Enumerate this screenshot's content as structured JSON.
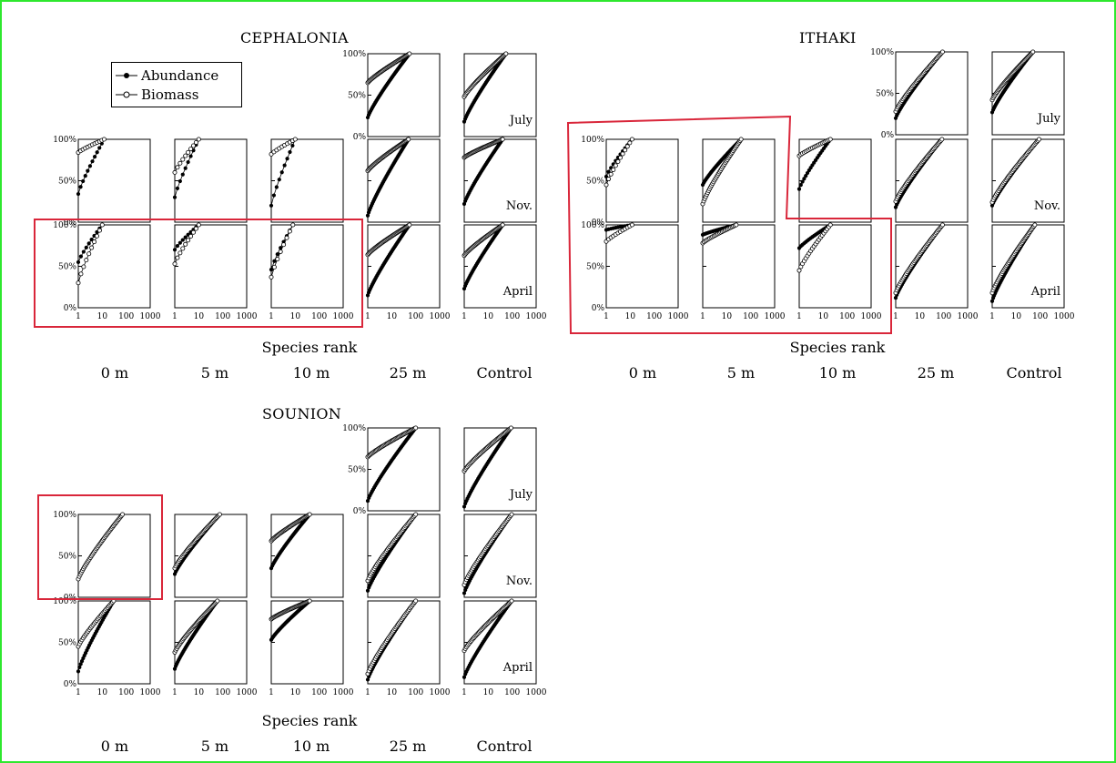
{
  "figure": {
    "sites": {
      "cephalonia": {
        "title": "CEPHALONIA",
        "xaxis_title": "Species rank",
        "columns": [
          "0 m",
          "5 m",
          "10 m",
          "25 m",
          "Control"
        ]
      },
      "ithaki": {
        "title": "ITHAKI",
        "xaxis_title": "Species rank",
        "columns": [
          "0 m",
          "5 m",
          "10 m",
          "25 m",
          "Control"
        ]
      },
      "sounion": {
        "title": "SOUNION",
        "xaxis_title": "Species rank",
        "columns": [
          "0 m",
          "5 m",
          "10 m",
          "25 m",
          "Control"
        ]
      }
    },
    "legend": {
      "abundance_label": "Abundance",
      "biomass_label": "Biomass"
    },
    "months": [
      "July",
      "Nov.",
      "April"
    ],
    "y_tick_labels": [
      "100%",
      "50%",
      "0%"
    ],
    "x_tick_labels": [
      "1",
      "10",
      "100",
      "1000"
    ],
    "colors": {
      "border": "#2ee82e",
      "highlight": "#d9263a",
      "abundance_marker": "#000000",
      "biomass_marker": "#ffffff"
    }
  },
  "chart_data": {
    "type": "scatter",
    "description_axes": {
      "xscale": "log",
      "xlim": [
        1,
        1000
      ],
      "ylim": [
        0,
        100
      ],
      "y_unit": "%"
    },
    "panels": [
      {
        "site": "cephalonia",
        "depth": "25 m",
        "month": "July",
        "abundance": {
          "start": 23,
          "n": 55
        },
        "biomass": {
          "start": 65,
          "n": 55
        }
      },
      {
        "site": "cephalonia",
        "depth": "Control",
        "month": "July",
        "abundance": {
          "start": 18,
          "n": 55
        },
        "biomass": {
          "start": 48,
          "n": 55
        }
      },
      {
        "site": "cephalonia",
        "depth": "0 m",
        "month": "Nov.",
        "abundance": {
          "start": 34,
          "n": 12
        },
        "biomass": {
          "start": 84,
          "n": 12
        }
      },
      {
        "site": "cephalonia",
        "depth": "5 m",
        "month": "Nov.",
        "abundance": {
          "start": 30,
          "n": 10
        },
        "biomass": {
          "start": 60,
          "n": 10
        }
      },
      {
        "site": "cephalonia",
        "depth": "10 m",
        "month": "Nov.",
        "abundance": {
          "start": 20,
          "n": 10
        },
        "biomass": {
          "start": 82,
          "n": 10
        }
      },
      {
        "site": "cephalonia",
        "depth": "25 m",
        "month": "Nov.",
        "abundance": {
          "start": 8,
          "n": 50
        },
        "biomass": {
          "start": 62,
          "n": 50
        }
      },
      {
        "site": "cephalonia",
        "depth": "Control",
        "month": "Nov.",
        "abundance": {
          "start": 22,
          "n": 40
        },
        "biomass": {
          "start": 78,
          "n": 40
        }
      },
      {
        "site": "cephalonia",
        "depth": "0 m",
        "month": "April",
        "abundance": {
          "start": 55,
          "n": 10
        },
        "biomass": {
          "start": 30,
          "n": 10
        }
      },
      {
        "site": "cephalonia",
        "depth": "5 m",
        "month": "April",
        "abundance": {
          "start": 70,
          "n": 10
        },
        "biomass": {
          "start": 53,
          "n": 10
        }
      },
      {
        "site": "cephalonia",
        "depth": "10 m",
        "month": "April",
        "abundance": {
          "start": 46,
          "n": 8
        },
        "biomass": {
          "start": 37,
          "n": 8
        }
      },
      {
        "site": "cephalonia",
        "depth": "25 m",
        "month": "April",
        "abundance": {
          "start": 15,
          "n": 55
        },
        "biomass": {
          "start": 64,
          "n": 55
        }
      },
      {
        "site": "cephalonia",
        "depth": "Control",
        "month": "April",
        "abundance": {
          "start": 23,
          "n": 40
        },
        "biomass": {
          "start": 63,
          "n": 40
        }
      },
      {
        "site": "ithaki",
        "depth": "25 m",
        "month": "July",
        "abundance": {
          "start": 20,
          "n": 90
        },
        "biomass": {
          "start": 28,
          "n": 90
        }
      },
      {
        "site": "ithaki",
        "depth": "Control",
        "month": "July",
        "abundance": {
          "start": 27,
          "n": 50
        },
        "biomass": {
          "start": 42,
          "n": 50
        }
      },
      {
        "site": "ithaki",
        "depth": "0 m",
        "month": "Nov.",
        "abundance": {
          "start": 55,
          "n": 12
        },
        "biomass": {
          "start": 45,
          "n": 12
        }
      },
      {
        "site": "ithaki",
        "depth": "5 m",
        "month": "Nov.",
        "abundance": {
          "start": 45,
          "n": 40
        },
        "biomass": {
          "start": 22,
          "n": 40
        }
      },
      {
        "site": "ithaki",
        "depth": "10 m",
        "month": "Nov.",
        "abundance": {
          "start": 40,
          "n": 20
        },
        "biomass": {
          "start": 80,
          "n": 20
        }
      },
      {
        "site": "ithaki",
        "depth": "25 m",
        "month": "Nov.",
        "abundance": {
          "start": 18,
          "n": 85
        },
        "biomass": {
          "start": 25,
          "n": 85
        }
      },
      {
        "site": "ithaki",
        "depth": "Control",
        "month": "Nov.",
        "abundance": {
          "start": 20,
          "n": 90
        },
        "biomass": {
          "start": 24,
          "n": 90
        }
      },
      {
        "site": "ithaki",
        "depth": "0 m",
        "month": "April",
        "abundance": {
          "start": 94,
          "n": 12
        },
        "biomass": {
          "start": 80,
          "n": 12
        }
      },
      {
        "site": "ithaki",
        "depth": "5 m",
        "month": "April",
        "abundance": {
          "start": 88,
          "n": 25
        },
        "biomass": {
          "start": 78,
          "n": 25
        }
      },
      {
        "site": "ithaki",
        "depth": "10 m",
        "month": "April",
        "abundance": {
          "start": 72,
          "n": 20
        },
        "biomass": {
          "start": 45,
          "n": 20
        }
      },
      {
        "site": "ithaki",
        "depth": "25 m",
        "month": "April",
        "abundance": {
          "start": 12,
          "n": 90
        },
        "biomass": {
          "start": 18,
          "n": 90
        }
      },
      {
        "site": "ithaki",
        "depth": "Control",
        "month": "April",
        "abundance": {
          "start": 8,
          "n": 60
        },
        "biomass": {
          "start": 18,
          "n": 60
        }
      },
      {
        "site": "sounion",
        "depth": "25 m",
        "month": "July",
        "abundance": {
          "start": 12,
          "n": 100
        },
        "biomass": {
          "start": 65,
          "n": 100
        }
      },
      {
        "site": "sounion",
        "depth": "Control",
        "month": "July",
        "abundance": {
          "start": 5,
          "n": 90
        },
        "biomass": {
          "start": 48,
          "n": 90
        }
      },
      {
        "site": "sounion",
        "depth": "0 m",
        "month": "Nov.",
        "abundance": {
          "start": 22,
          "n": 70
        },
        "biomass": {
          "start": 22,
          "n": 70
        }
      },
      {
        "site": "sounion",
        "depth": "5 m",
        "month": "Nov.",
        "abundance": {
          "start": 28,
          "n": 75
        },
        "biomass": {
          "start": 35,
          "n": 75
        }
      },
      {
        "site": "sounion",
        "depth": "10 m",
        "month": "Nov.",
        "abundance": {
          "start": 35,
          "n": 40
        },
        "biomass": {
          "start": 68,
          "n": 40
        }
      },
      {
        "site": "sounion",
        "depth": "25 m",
        "month": "Nov.",
        "abundance": {
          "start": 8,
          "n": 100
        },
        "biomass": {
          "start": 20,
          "n": 100
        }
      },
      {
        "site": "sounion",
        "depth": "Control",
        "month": "Nov.",
        "abundance": {
          "start": 5,
          "n": 95
        },
        "biomass": {
          "start": 15,
          "n": 95
        }
      },
      {
        "site": "sounion",
        "depth": "0 m",
        "month": "April",
        "abundance": {
          "start": 15,
          "n": 30
        },
        "biomass": {
          "start": 45,
          "n": 30
        }
      },
      {
        "site": "sounion",
        "depth": "5 m",
        "month": "April",
        "abundance": {
          "start": 18,
          "n": 60
        },
        "biomass": {
          "start": 38,
          "n": 60
        }
      },
      {
        "site": "sounion",
        "depth": "10 m",
        "month": "April",
        "abundance": {
          "start": 53,
          "n": 40
        },
        "biomass": {
          "start": 78,
          "n": 40
        }
      },
      {
        "site": "sounion",
        "depth": "25 m",
        "month": "April",
        "abundance": {
          "start": 5,
          "n": 100
        },
        "biomass": {
          "start": 12,
          "n": 100
        }
      },
      {
        "site": "sounion",
        "depth": "Control",
        "month": "April",
        "abundance": {
          "start": 8,
          "n": 95
        },
        "biomass": {
          "start": 40,
          "n": 95
        }
      }
    ]
  }
}
